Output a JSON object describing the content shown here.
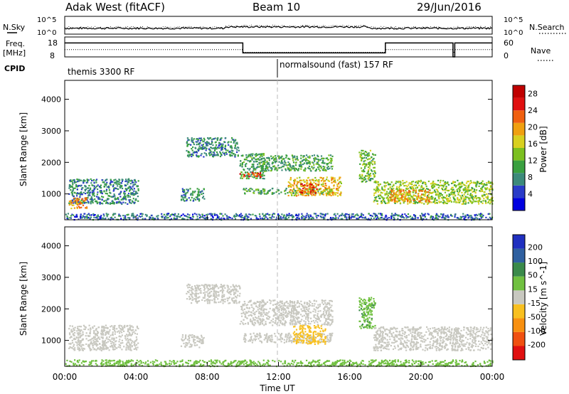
{
  "header": {
    "station": "Adak West (fitACF)",
    "beam": "Beam 10",
    "date": "29/Jun/2016"
  },
  "aux": {
    "nsky_label": "N.Sky",
    "nsky_top": "10^5",
    "nsky_bottom": "10^0",
    "nsearch_label": "N.Search",
    "nsearch_top": "10^5",
    "nsearch_bottom": "10^0",
    "freq_label_1": "Freq.",
    "freq_label_2": "[MHz]",
    "freq_top": "18",
    "freq_bottom": "8",
    "nave_label": "Nave",
    "nave_top": "60",
    "nave_bottom": "0",
    "cpid_label": "CPID",
    "cpid_1": "themis 3300 RF",
    "cpid_2": "normalsound (fast) 157 RF"
  },
  "colors": {
    "power_scale": [
      "#0000e0",
      "#2a3cc8",
      "#3c8a7a",
      "#3aa040",
      "#7cc020",
      "#d8d020",
      "#f0a010",
      "#f06010",
      "#e01010",
      "#c00000"
    ],
    "velocity_scale": [
      "#2030c0",
      "#2f60a0",
      "#3a8a4a",
      "#70c040",
      "#c8c8c0",
      "#f8c020",
      "#f89010",
      "#f05010",
      "#e01010"
    ],
    "velocity_grey": "#c8c8c0"
  },
  "chart_data": [
    {
      "type": "heatmap",
      "name": "power-panel",
      "ylabel": "Slant Range [km]",
      "ylim": [
        180,
        4600
      ],
      "yticks": [
        1000,
        2000,
        3000,
        4000
      ],
      "xlim": [
        0,
        24
      ],
      "xticks": [
        "00:00",
        "04:00",
        "08:00",
        "12:00",
        "16:00",
        "20:00",
        "00:00"
      ],
      "colorbar": {
        "label": "Power [dB]",
        "ticks": [
          "4",
          "8",
          "12",
          "16",
          "20",
          "24",
          "28"
        ],
        "range": [
          0,
          30
        ]
      },
      "regions": [
        {
          "t0": 0.2,
          "t1": 4.1,
          "r0": 700,
          "r1": 1500,
          "value": 8
        },
        {
          "t0": 0.2,
          "t1": 1.2,
          "r0": 550,
          "r1": 900,
          "value": 20
        },
        {
          "t0": 6.8,
          "t1": 9.8,
          "r0": 2200,
          "r1": 2800,
          "value": 8
        },
        {
          "t0": 6.5,
          "t1": 7.8,
          "r0": 800,
          "r1": 1200,
          "value": 8
        },
        {
          "t0": 9.8,
          "t1": 11.2,
          "r0": 1500,
          "r1": 2300,
          "value": 10
        },
        {
          "t0": 9.8,
          "t1": 11.0,
          "r0": 1550,
          "r1": 1700,
          "value": 24
        },
        {
          "t0": 11.0,
          "t1": 15.0,
          "r0": 1750,
          "r1": 2250,
          "value": 10
        },
        {
          "t0": 10.0,
          "t1": 15.0,
          "r0": 1020,
          "r1": 1200,
          "value": 10
        },
        {
          "t0": 12.5,
          "t1": 15.5,
          "r0": 950,
          "r1": 1550,
          "value": 18
        },
        {
          "t0": 13.2,
          "t1": 14.2,
          "r0": 1050,
          "r1": 1350,
          "value": 24
        },
        {
          "t0": 16.5,
          "t1": 17.4,
          "r0": 1400,
          "r1": 2400,
          "value": 12
        },
        {
          "t0": 17.3,
          "t1": 24.0,
          "r0": 700,
          "r1": 1450,
          "value": 14
        },
        {
          "t0": 18.2,
          "t1": 20.5,
          "r0": 750,
          "r1": 1150,
          "value": 20
        },
        {
          "t0": 0.0,
          "t1": 24.0,
          "r0": 200,
          "r1": 400,
          "value": 6
        }
      ]
    },
    {
      "type": "heatmap",
      "name": "velocity-panel",
      "ylabel": "Slant Range [km]",
      "ylim": [
        180,
        4600
      ],
      "yticks": [
        1000,
        2000,
        3000,
        4000
      ],
      "xlim": [
        0,
        24
      ],
      "xticks": [
        "00:00",
        "04:00",
        "08:00",
        "12:00",
        "16:00",
        "20:00",
        "00:00"
      ],
      "xlabel": "Time UT",
      "colorbar": {
        "label": "Velocity [m s^-1]",
        "ticks": [
          "200",
          "100",
          "50",
          "15",
          "-15",
          "-50",
          "-100",
          "-200"
        ]
      },
      "regions": [
        {
          "t0": 0.2,
          "t1": 4.1,
          "r0": 700,
          "r1": 1500,
          "value": 0
        },
        {
          "t0": 6.8,
          "t1": 9.8,
          "r0": 2200,
          "r1": 2800,
          "value": 0
        },
        {
          "t0": 6.5,
          "t1": 7.8,
          "r0": 800,
          "r1": 1200,
          "value": 0
        },
        {
          "t0": 9.8,
          "t1": 15.0,
          "r0": 1500,
          "r1": 2300,
          "value": 0
        },
        {
          "t0": 10.0,
          "t1": 15.0,
          "r0": 950,
          "r1": 1250,
          "value": 0
        },
        {
          "t0": 12.8,
          "t1": 14.6,
          "r0": 900,
          "r1": 1500,
          "value": -30
        },
        {
          "t0": 16.5,
          "t1": 17.4,
          "r0": 1400,
          "r1": 2400,
          "value": 40
        },
        {
          "t0": 17.3,
          "t1": 24.0,
          "r0": 700,
          "r1": 1450,
          "value": 0
        },
        {
          "t0": 0.0,
          "t1": 24.0,
          "r0": 200,
          "r1": 400,
          "value": 30
        }
      ]
    }
  ]
}
